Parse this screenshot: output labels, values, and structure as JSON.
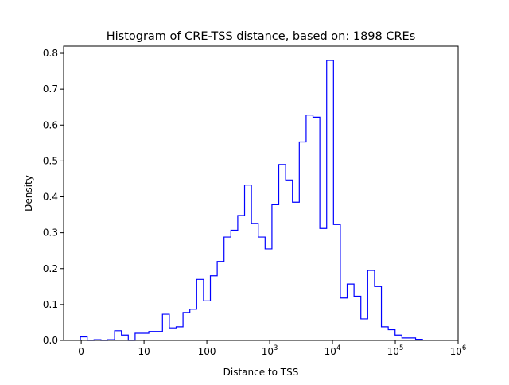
{
  "chart_data": {
    "type": "histogram-step",
    "title": "Histogram of CRE-TSS distance, based on: 1898 CREs",
    "xlabel": "Distance to TSS",
    "ylabel": "Density",
    "x_scale": "symlog (decade position units: 0 -> 0, 1 -> 10, 2 -> 100, ...)",
    "xlim": [
      -0.28,
      6.0
    ],
    "ylim": [
      0,
      0.82
    ],
    "color": "#0000ff",
    "x_ticks": [
      {
        "pos": 0,
        "base": "0",
        "exp": ""
      },
      {
        "pos": 1,
        "base": "10",
        "exp": ""
      },
      {
        "pos": 2,
        "base": "100",
        "exp": ""
      },
      {
        "pos": 3,
        "base": "10",
        "exp": "3"
      },
      {
        "pos": 4,
        "base": "10",
        "exp": "4"
      },
      {
        "pos": 5,
        "base": "10",
        "exp": "5"
      },
      {
        "pos": 6,
        "base": "10",
        "exp": "6"
      }
    ],
    "y_ticks": [
      "0.0",
      "0.1",
      "0.2",
      "0.3",
      "0.4",
      "0.5",
      "0.6",
      "0.7",
      "0.8"
    ],
    "bin_start": -0.013,
    "bin_width": 0.1089,
    "values": [
      0.01,
      0.0,
      0.002,
      0.0,
      0.002,
      0.027,
      0.015,
      0.0,
      0.02,
      0.02,
      0.025,
      0.025,
      0.073,
      0.035,
      0.038,
      0.078,
      0.087,
      0.17,
      0.11,
      0.18,
      0.22,
      0.288,
      0.307,
      0.348,
      0.433,
      0.326,
      0.288,
      0.255,
      0.378,
      0.49,
      0.447,
      0.385,
      0.553,
      0.628,
      0.622,
      0.312,
      0.78,
      0.323,
      0.118,
      0.157,
      0.123,
      0.06,
      0.195,
      0.15,
      0.038,
      0.03,
      0.015,
      0.007,
      0.007,
      0.003
    ]
  }
}
